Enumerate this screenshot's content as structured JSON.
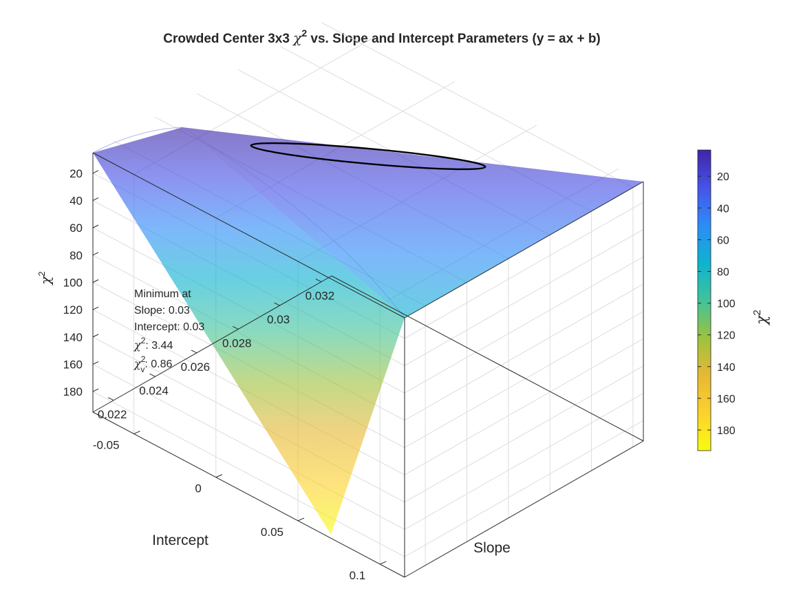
{
  "chart_data": {
    "type": "surface",
    "title": {
      "prefix": "Crowded Center 3x3 ",
      "symbol": "χ",
      "sup": "2",
      "suffix": " vs. Slope and Intercept Parameters (y = ax + b)"
    },
    "xlabel": "Slope",
    "ylabel": "Intercept",
    "zlabel": {
      "symbol": "χ",
      "sup": "2"
    },
    "xlim": [
      0.021,
      0.0325
    ],
    "ylim": [
      -0.075,
      0.115
    ],
    "zlim": [
      5,
      195
    ],
    "z_reversed": true,
    "x_ticks": [
      "0.022",
      "0.024",
      "0.026",
      "0.028",
      "0.03",
      "0.032"
    ],
    "y_ticks": [
      "-0.05",
      "0",
      "0.05",
      "0.1"
    ],
    "z_ticks": [
      "20",
      "40",
      "60",
      "80",
      "100",
      "120",
      "140",
      "160",
      "180"
    ],
    "grid": true,
    "surface": {
      "description": "chi-square vs slope (a) and intercept (b)",
      "min_at": {
        "slope": 0.03,
        "intercept": 0.03,
        "chi2": 3.44
      },
      "corner_values": [
        {
          "slope": 0.021,
          "intercept": -0.075,
          "chi2": 195
        },
        {
          "slope": 0.021,
          "intercept": 0.115,
          "chi2": 15
        },
        {
          "slope": 0.0325,
          "intercept": -0.075,
          "chi2": 33
        },
        {
          "slope": 0.0325,
          "intercept": 0.115,
          "chi2": 110
        }
      ],
      "alpha": 0.6
    },
    "contour": {
      "level": "1-sigma",
      "color": "#000000"
    },
    "colorbar": {
      "range": [
        3.44,
        193
      ],
      "ticks": [
        "20",
        "40",
        "60",
        "80",
        "100",
        "120",
        "140",
        "160",
        "180"
      ],
      "label": {
        "symbol": "χ",
        "sup": "2"
      },
      "colormap": [
        "#3e26a8",
        "#4653e8",
        "#2d8cf8",
        "#0db3cf",
        "#40c39a",
        "#9dc23e",
        "#e7b834",
        "#fcd12e",
        "#f9fb0e"
      ]
    },
    "annotation": {
      "line1": "Minimum at",
      "line2": "Slope: 0.03",
      "line3": "Intercept: 0.03",
      "chi_symbol": "χ",
      "chi2_sup": "2",
      "chi2_value": ": 3.44",
      "chinu_sup": "2",
      "chinu_sub": "v",
      "chinu_value": ": 0.86"
    }
  }
}
